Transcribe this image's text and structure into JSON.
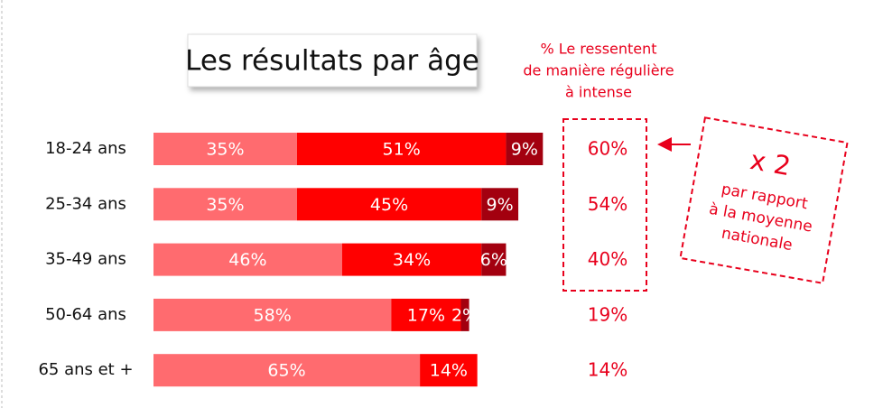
{
  "chart_data": {
    "type": "stacked-bar",
    "title": "Les résultats par âge",
    "categories": [
      "18-24 ans",
      "25-34 ans",
      "35-49 ans",
      "50-64 ans",
      "65 ans et +"
    ],
    "series": [
      {
        "color": "#ff6b6f",
        "values": [
          35,
          35,
          46,
          58,
          65
        ],
        "value_labels": [
          "35%",
          "35%",
          "46%",
          "58%",
          "65%"
        ]
      },
      {
        "color": "#ff0000",
        "values": [
          51,
          45,
          34,
          17,
          14
        ],
        "value_labels": [
          "51%",
          "45%",
          "34%",
          "17%",
          "14%"
        ]
      },
      {
        "color": "#a3000f",
        "values": [
          9,
          9,
          6,
          2,
          null
        ],
        "value_labels": [
          "9%",
          "9%",
          "6%",
          "2%",
          null
        ]
      }
    ],
    "totals": {
      "title": [
        "% Le ressentent",
        "de manière régulière",
        "à intense"
      ],
      "values": [
        60,
        54,
        40,
        19,
        14
      ],
      "value_labels": [
        "60%",
        "54%",
        "40%",
        "19%",
        "14%"
      ]
    },
    "annotation": {
      "headline": "x 2",
      "lines": [
        "par rapport",
        "à la moyenne",
        "nationale"
      ]
    }
  }
}
